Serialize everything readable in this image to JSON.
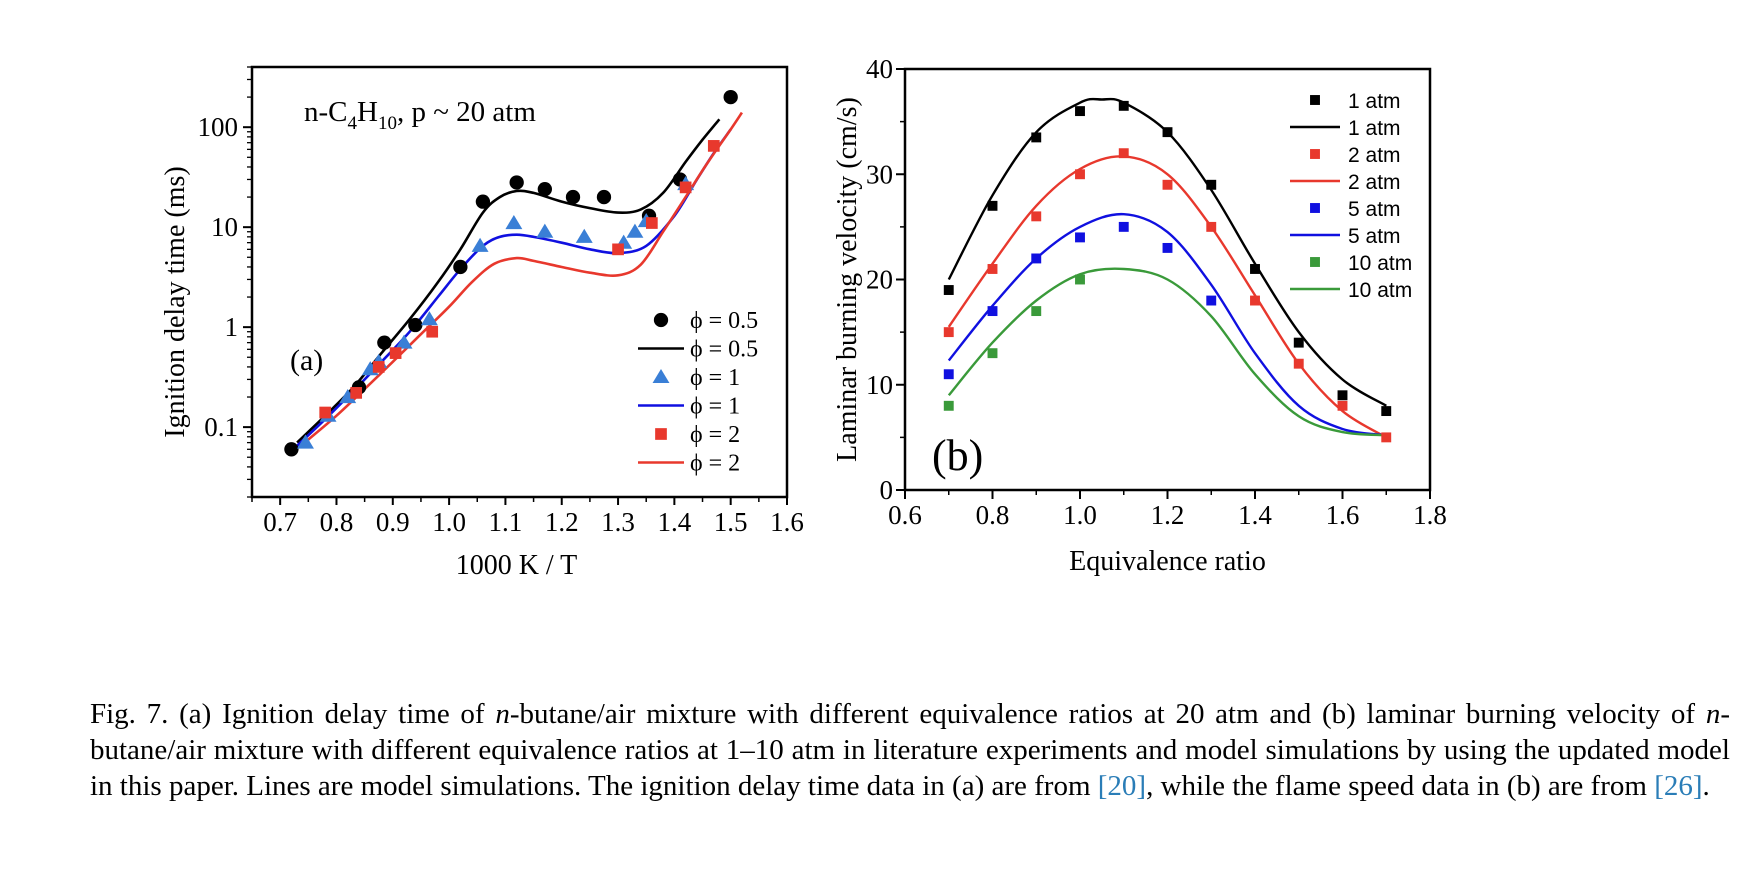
{
  "chart_data": [
    {
      "type": "scatter",
      "panel_label": "(a)",
      "annotation": "n-C4H10, p ~ 20 atm",
      "xlabel": "1000 K / T",
      "ylabel": "Ignition delay time (ms)",
      "x_scale": "linear",
      "y_scale": "log",
      "xlim": [
        0.65,
        1.6
      ],
      "ylim": [
        0.02,
        400
      ],
      "x_ticks": [
        "0.7",
        "0.8",
        "0.9",
        "1.0",
        "1.1",
        "1.2",
        "1.3",
        "1.4",
        "1.5",
        "1.6"
      ],
      "y_ticks": [
        "0.1",
        "1",
        "10",
        "100"
      ],
      "legend_position": "lower-right",
      "series": [
        {
          "name": "ϕ = 0.5",
          "kind": "markers",
          "marker": "circle",
          "color": "#000000",
          "x": [
            0.72,
            0.84,
            0.885,
            0.94,
            1.02,
            1.06,
            1.12,
            1.17,
            1.22,
            1.275,
            1.355,
            1.41,
            1.5
          ],
          "y": [
            0.06,
            0.25,
            0.7,
            1.05,
            4.0,
            18,
            28,
            24,
            20,
            20,
            13,
            30,
            200
          ]
        },
        {
          "name": "ϕ = 0.5",
          "kind": "line",
          "color": "#000000",
          "x": [
            0.73,
            0.78,
            0.83,
            0.88,
            0.93,
            0.98,
            1.02,
            1.06,
            1.09,
            1.12,
            1.15,
            1.2,
            1.25,
            1.3,
            1.34,
            1.38,
            1.42,
            1.45,
            1.48
          ],
          "y": [
            0.07,
            0.13,
            0.25,
            0.55,
            1.2,
            2.8,
            6.0,
            14,
            20,
            23,
            22,
            18,
            15.5,
            14,
            15,
            22,
            45,
            75,
            120
          ]
        },
        {
          "name": "ϕ = 1",
          "kind": "markers",
          "marker": "triangle",
          "color": "#3a7fd6",
          "x": [
            0.745,
            0.785,
            0.82,
            0.86,
            0.875,
            0.92,
            0.965,
            1.055,
            1.115,
            1.17,
            1.24,
            1.31,
            1.33,
            1.35,
            1.42
          ],
          "y": [
            0.07,
            0.13,
            0.2,
            0.38,
            0.45,
            0.7,
            1.2,
            6.5,
            11,
            9,
            8,
            7,
            9,
            11.5,
            27
          ]
        },
        {
          "name": "ϕ = 1",
          "kind": "line",
          "color": "#1010e0",
          "x": [
            0.73,
            0.78,
            0.83,
            0.88,
            0.93,
            0.98,
            1.02,
            1.06,
            1.09,
            1.12,
            1.15,
            1.2,
            1.25,
            1.3,
            1.35,
            1.4,
            1.44,
            1.47,
            1.5
          ],
          "y": [
            0.065,
            0.12,
            0.23,
            0.45,
            0.9,
            2.0,
            3.8,
            6.5,
            8.0,
            8.4,
            8.0,
            7.0,
            6.0,
            5.5,
            6.5,
            13,
            30,
            55,
            95
          ]
        },
        {
          "name": "ϕ = 2",
          "kind": "markers",
          "marker": "square",
          "color": "#e8382d",
          "x": [
            0.78,
            0.835,
            0.875,
            0.905,
            0.97,
            1.3,
            1.36,
            1.42,
            1.47
          ],
          "y": [
            0.14,
            0.22,
            0.4,
            0.55,
            0.9,
            6,
            11,
            25,
            65
          ]
        },
        {
          "name": "ϕ = 2",
          "kind": "line",
          "color": "#e8382d",
          "x": [
            0.75,
            0.8,
            0.85,
            0.9,
            0.95,
            1.0,
            1.04,
            1.08,
            1.12,
            1.15,
            1.2,
            1.25,
            1.3,
            1.34,
            1.38,
            1.42,
            1.46,
            1.5,
            1.52
          ],
          "y": [
            0.075,
            0.13,
            0.24,
            0.45,
            0.85,
            1.6,
            2.8,
            4.3,
            4.9,
            4.6,
            4.0,
            3.5,
            3.3,
            4.2,
            9,
            20,
            45,
            95,
            140
          ]
        }
      ]
    },
    {
      "type": "scatter",
      "panel_label": "(b)",
      "xlabel": "Equivalence ratio",
      "ylabel": "Laminar burning velocity (cm/s)",
      "xlim": [
        0.6,
        1.8
      ],
      "ylim": [
        0,
        40
      ],
      "x_ticks": [
        "0.6",
        "0.8",
        "1.0",
        "1.2",
        "1.4",
        "1.6",
        "1.8"
      ],
      "y_ticks": [
        "0",
        "10",
        "20",
        "30",
        "40"
      ],
      "legend_position": "top-right",
      "series": [
        {
          "name": "1 atm",
          "kind": "markers",
          "marker": "square",
          "color": "#000000",
          "x": [
            0.7,
            0.8,
            0.9,
            1.0,
            1.1,
            1.2,
            1.3,
            1.4,
            1.5,
            1.6,
            1.7
          ],
          "y": [
            19,
            27,
            33.5,
            36,
            36.5,
            34,
            29,
            21,
            14,
            9,
            7.5
          ]
        },
        {
          "name": "1 atm",
          "kind": "line",
          "color": "#000000",
          "x": [
            0.7,
            0.8,
            0.9,
            1.0,
            1.05,
            1.1,
            1.2,
            1.3,
            1.4,
            1.5,
            1.6,
            1.7
          ],
          "y": [
            20,
            28,
            34,
            36.8,
            37.1,
            36.8,
            34,
            28.5,
            21.5,
            15,
            10.5,
            8
          ]
        },
        {
          "name": "2 atm",
          "kind": "markers",
          "marker": "square",
          "color": "#e8382d",
          "x": [
            0.7,
            0.8,
            0.9,
            1.0,
            1.1,
            1.2,
            1.3,
            1.4,
            1.5,
            1.6,
            1.7
          ],
          "y": [
            15,
            21,
            26,
            30,
            32,
            29,
            25,
            18,
            12,
            8,
            5
          ]
        },
        {
          "name": "2 atm",
          "kind": "line",
          "color": "#e8382d",
          "x": [
            0.7,
            0.8,
            0.9,
            1.0,
            1.1,
            1.2,
            1.3,
            1.4,
            1.5,
            1.6,
            1.7
          ],
          "y": [
            15.5,
            21.5,
            27,
            30.5,
            31.7,
            30,
            25,
            18.5,
            12,
            7.5,
            5
          ]
        },
        {
          "name": "5 atm",
          "kind": "markers",
          "marker": "square",
          "color": "#1010e0",
          "x": [
            0.7,
            0.8,
            0.9,
            1.0,
            1.1,
            1.2,
            1.3
          ],
          "y": [
            11,
            17,
            22,
            24,
            25,
            23,
            18
          ]
        },
        {
          "name": "5 atm",
          "kind": "line",
          "color": "#1010e0",
          "x": [
            0.7,
            0.8,
            0.9,
            1.0,
            1.1,
            1.2,
            1.3,
            1.4,
            1.5,
            1.6,
            1.7
          ],
          "y": [
            12.3,
            17.5,
            22,
            25,
            26.2,
            24.5,
            19.5,
            13,
            8,
            5.8,
            5.2
          ]
        },
        {
          "name": "10 atm",
          "kind": "markers",
          "marker": "square",
          "color": "#3a9a3a",
          "x": [
            0.7,
            0.8,
            0.9,
            1.0
          ],
          "y": [
            8,
            13,
            17,
            20
          ]
        },
        {
          "name": "10 atm",
          "kind": "line",
          "color": "#3a9a3a",
          "x": [
            0.7,
            0.8,
            0.9,
            1.0,
            1.1,
            1.2,
            1.3,
            1.4,
            1.5,
            1.6,
            1.7
          ],
          "y": [
            9,
            14,
            18,
            20.5,
            21,
            20,
            16.5,
            11,
            7,
            5.5,
            5.2
          ]
        }
      ]
    }
  ],
  "caption": {
    "fig": "Fig. 7.",
    "t1": " (a) Ignition delay time of ",
    "n1": "n",
    "t2": "-butane/air mixture with different equivalence ratios at 20 atm and (b) laminar burning velocity of ",
    "n2": "n",
    "t3": "-butane/air mixture with different equivalence ratios at 1–10 atm in literature experiments and model simulations by using the updated model in this paper. Lines are model simulations. The ignition delay time data in (a) are from ",
    "ref1": "[20]",
    "t4": ", while the flame speed data in (b) are from ",
    "ref2": "[26]",
    "t5": "."
  }
}
